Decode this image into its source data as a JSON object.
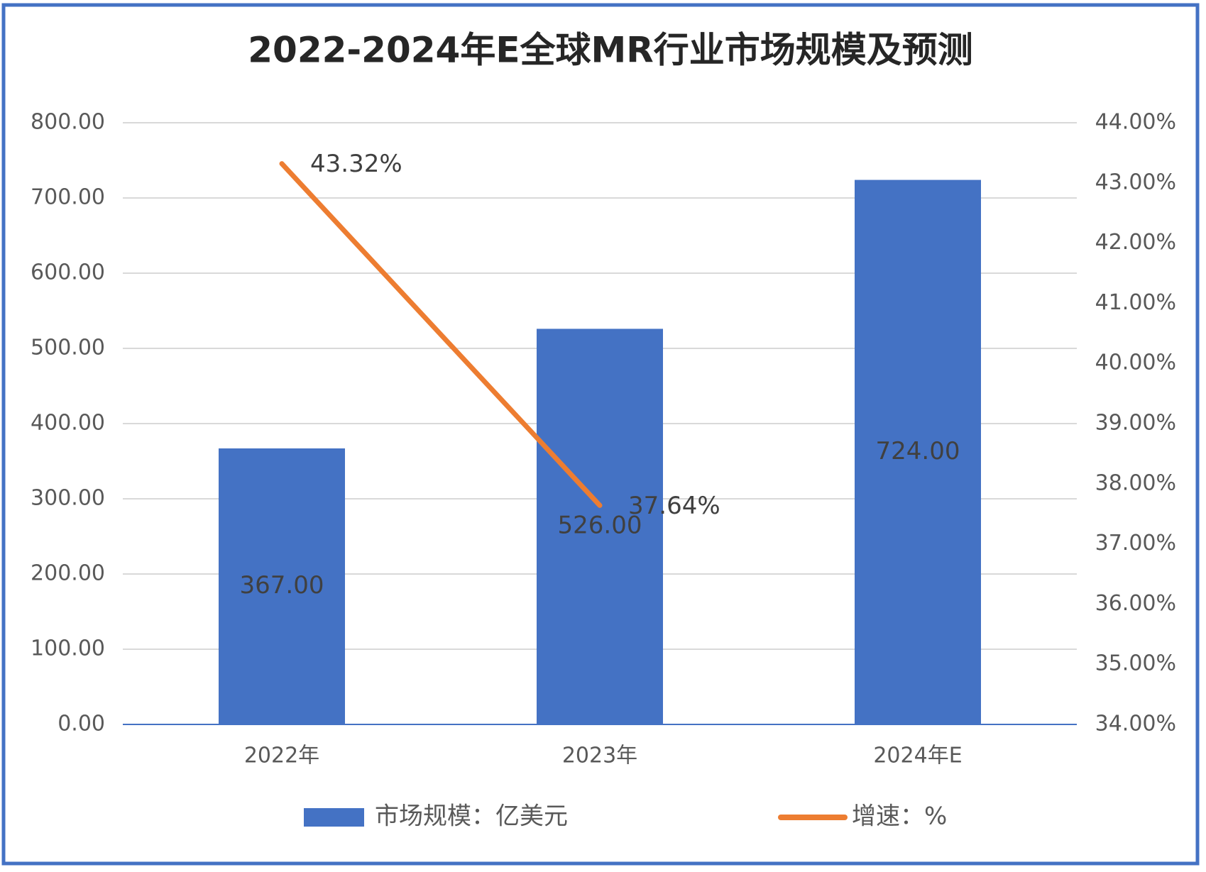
{
  "chart_data": {
    "type": "bar",
    "title": "2022-2024年E全球MR行业市场规模及预测",
    "categories": [
      "2022年",
      "2023年",
      "2024年E"
    ],
    "series": [
      {
        "name": "市场规模：亿美元",
        "type": "bar",
        "color": "#4472c4",
        "values": [
          367,
          526,
          724
        ],
        "value_labels": [
          "367.00",
          "526.00",
          "724.00"
        ]
      },
      {
        "name": "增速：%",
        "type": "line",
        "axis": "y2",
        "color": "#ed7d31",
        "values": [
          43.32,
          37.64,
          null
        ],
        "value_labels": [
          "43.32%",
          "37.64%",
          null
        ]
      }
    ],
    "ylim": [
      0,
      800
    ],
    "yticks": [
      {
        "value": 0,
        "label": "0.00"
      },
      {
        "value": 100,
        "label": "100.00"
      },
      {
        "value": 200,
        "label": "200.00"
      },
      {
        "value": 300,
        "label": "300.00"
      },
      {
        "value": 400,
        "label": "400.00"
      },
      {
        "value": 500,
        "label": "500.00"
      },
      {
        "value": 600,
        "label": "600.00"
      },
      {
        "value": 700,
        "label": "700.00"
      },
      {
        "value": 800,
        "label": "800.00"
      }
    ],
    "y2lim": [
      34,
      44
    ],
    "y2ticks": [
      {
        "value": 34,
        "label": "34.00%"
      },
      {
        "value": 35,
        "label": "35.00%"
      },
      {
        "value": 36,
        "label": "36.00%"
      },
      {
        "value": 37,
        "label": "37.00%"
      },
      {
        "value": 38,
        "label": "38.00%"
      },
      {
        "value": 39,
        "label": "39.00%"
      },
      {
        "value": 40,
        "label": "40.00%"
      },
      {
        "value": 41,
        "label": "41.00%"
      },
      {
        "value": 42,
        "label": "42.00%"
      },
      {
        "value": 43,
        "label": "43.00%"
      },
      {
        "value": 44,
        "label": "44.00%"
      }
    ],
    "grid": true,
    "legend": "bottom"
  }
}
